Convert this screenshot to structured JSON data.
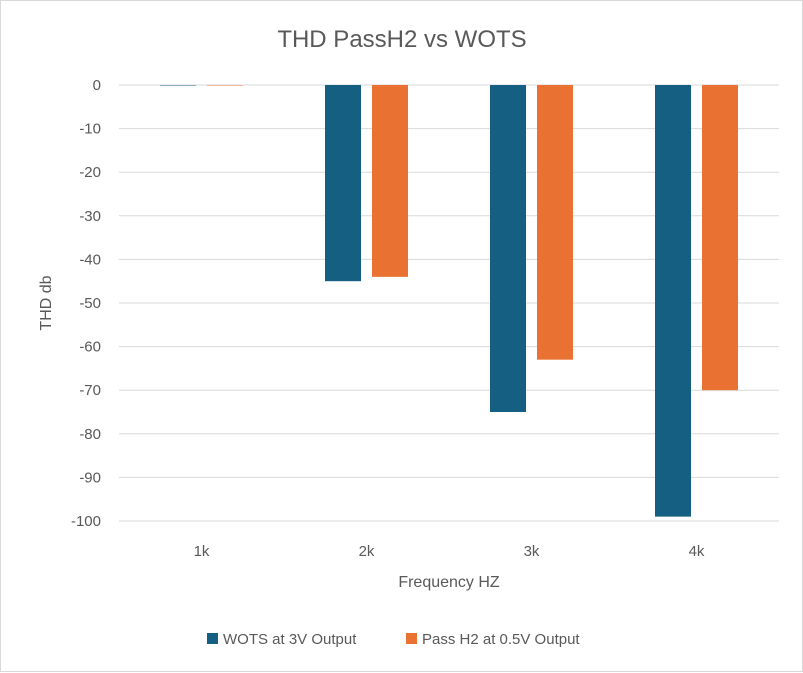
{
  "chart_data": {
    "type": "bar",
    "title": "THD PassH2 vs WOTS",
    "xlabel": "Frequency HZ",
    "ylabel": "THD db",
    "categories": [
      "1k",
      "2k",
      "3k",
      "4k"
    ],
    "series": [
      {
        "name": "WOTS at 3V Output",
        "values": [
          0,
          -45,
          -75,
          -99
        ],
        "color": "#156082"
      },
      {
        "name": "Pass H2 at 0.5V Output",
        "values": [
          0,
          -44,
          -63,
          -70
        ],
        "color": "#e97132"
      }
    ],
    "ylim": [
      -100,
      0
    ],
    "yticks": [
      0,
      -10,
      -20,
      -30,
      -40,
      -50,
      -60,
      -70,
      -80,
      -90,
      -100
    ],
    "ytick_labels": [
      "0",
      "-10",
      "-20",
      "-30",
      "-40",
      "-50",
      "-60",
      "-70",
      "-80",
      "-90",
      "-100"
    ],
    "grid": true,
    "legend_position": "bottom"
  }
}
